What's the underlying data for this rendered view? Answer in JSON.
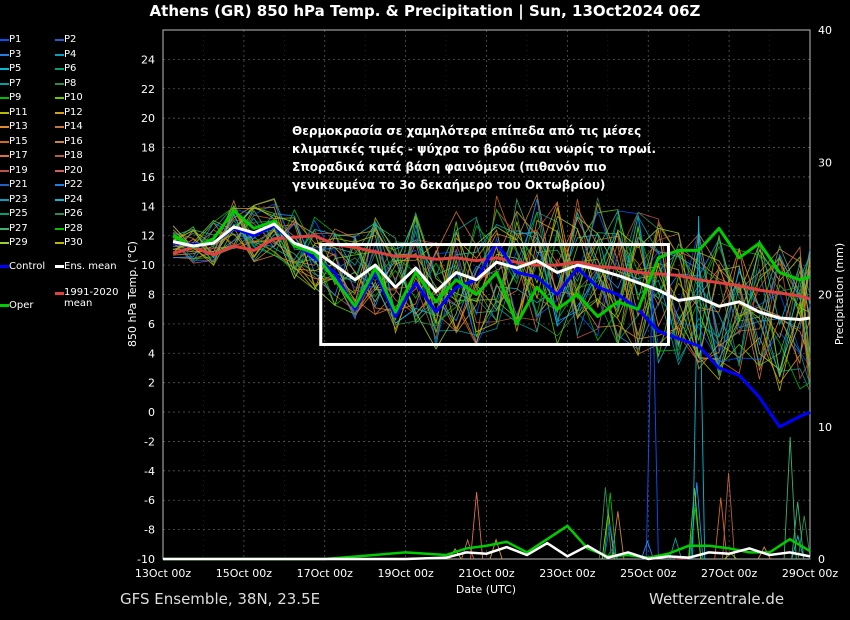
{
  "title": "Athens  (GR)  850 hPa Temp. & Precipitation | Sun, 13Oct2024 06Z",
  "footer_left": "GFS Ensemble, 38N, 23.5E",
  "footer_right": "Wetterzentrale.de",
  "annotation": [
    "Θερμοκρασία σε χαμηλότερα επίπεδα από τις μέσες",
    "κλιματικές τιμές - ψύχρα το βράδυ και νωρίς το πρωί.",
    "Σποραδικά κατά βάση φαινόμενα (πιθανόν πιο",
    "γενικευμένα το 3ο δεκαήμερο του Οκτωβρίου)"
  ],
  "colors": {
    "background": "#000000",
    "control": "#0000ff",
    "ens_mean": "#ffffff",
    "oper": "#00cc00",
    "climate_mean": "#e04040",
    "highlight_box": "#ffffff",
    "members": [
      "#0055ff",
      "#1e90ff",
      "#00bcd4",
      "#00a0a0",
      "#2e8b57",
      "#3cb371",
      "#00c000",
      "#66cc00",
      "#9acd32",
      "#b8b800",
      "#d4a017",
      "#e08a2a",
      "#c8743c",
      "#d2691e",
      "#cd853f",
      "#e07040",
      "#b56040",
      "#c05050"
    ]
  },
  "legend": {
    "members": [
      {
        "label": "P1",
        "color": "#0055ff"
      },
      {
        "label": "P2",
        "color": "#1e60c8"
      },
      {
        "label": "P3",
        "color": "#2080e0"
      },
      {
        "label": "P4",
        "color": "#00a0c0"
      },
      {
        "label": "P5",
        "color": "#00bcd4"
      },
      {
        "label": "P6",
        "color": "#00a070"
      },
      {
        "label": "P7",
        "color": "#00a0a0"
      },
      {
        "label": "P8",
        "color": "#2e8b57"
      },
      {
        "label": "P9",
        "color": "#00c000"
      },
      {
        "label": "P10",
        "color": "#66cc00"
      },
      {
        "label": "P11",
        "color": "#b8b800"
      },
      {
        "label": "P12",
        "color": "#d4a017"
      },
      {
        "label": "P13",
        "color": "#e08a2a"
      },
      {
        "label": "P14",
        "color": "#c8743c"
      },
      {
        "label": "P15",
        "color": "#d2691e"
      },
      {
        "label": "P16",
        "color": "#cd853f"
      },
      {
        "label": "P17",
        "color": "#e07040"
      },
      {
        "label": "P18",
        "color": "#b56040"
      },
      {
        "label": "P19",
        "color": "#c05050"
      },
      {
        "label": "P20",
        "color": "#d06060"
      },
      {
        "label": "P21",
        "color": "#1e60c8"
      },
      {
        "label": "P22",
        "color": "#2080e0"
      },
      {
        "label": "P23",
        "color": "#00a0c0"
      },
      {
        "label": "P24",
        "color": "#00bcd4"
      },
      {
        "label": "P25",
        "color": "#00a070"
      },
      {
        "label": "P26",
        "color": "#2e8b57"
      },
      {
        "label": "P27",
        "color": "#3cb371"
      },
      {
        "label": "P28",
        "color": "#00c000"
      },
      {
        "label": "P29",
        "color": "#9acd32"
      },
      {
        "label": "P30",
        "color": "#b8b800"
      }
    ],
    "control": {
      "label": "Control",
      "color": "#0000ff"
    },
    "ens_mean": {
      "label": "Ens. mean",
      "color": "#ffffff"
    },
    "oper": {
      "label": "Oper",
      "color": "#00cc00"
    },
    "climate_mean": {
      "label": "1991-2020 mean",
      "color": "#e04040"
    }
  },
  "chart_data": {
    "type": "line",
    "xlabel": "Date (UTC)",
    "ylabel": "850 hPa Temp. (°C)",
    "y2label": "Precipitation (mm)",
    "ylim": [
      -10,
      26
    ],
    "y2lim": [
      0,
      40
    ],
    "xlim_days": [
      0,
      16
    ],
    "x_ticks": [
      {
        "label": "13Oct 00z",
        "day": 0
      },
      {
        "label": "15Oct 00z",
        "day": 2
      },
      {
        "label": "17Oct 00z",
        "day": 4
      },
      {
        "label": "19Oct 00z",
        "day": 6
      },
      {
        "label": "21Oct 00z",
        "day": 8
      },
      {
        "label": "23Oct 00z",
        "day": 10
      },
      {
        "label": "25Oct 00z",
        "day": 12
      },
      {
        "label": "27Oct 00z",
        "day": 14
      },
      {
        "label": "29Oct 00z",
        "day": 16
      }
    ],
    "y_ticks": [
      24,
      22,
      20,
      18,
      16,
      14,
      12,
      10,
      8,
      6,
      4,
      2,
      0,
      -2,
      -4,
      -6,
      -8,
      -10
    ],
    "y2_ticks": [
      40,
      30,
      20,
      10,
      0
    ],
    "grid": true,
    "highlight_box": {
      "day_start": 4,
      "day_end": 12.5,
      "y_top": 11.4,
      "y_bottom": 4.6
    },
    "series": [
      {
        "name": "Ens. mean",
        "role": "mean",
        "x": [
          0.25,
          0.75,
          1.25,
          1.75,
          2.25,
          2.75,
          3.25,
          3.75,
          4.25,
          4.75,
          5.25,
          5.75,
          6.25,
          6.75,
          7.25,
          7.75,
          8.25,
          8.75,
          9.25,
          9.75,
          10.25,
          10.75,
          11.25,
          11.75,
          12.25,
          12.75,
          13.25,
          13.75,
          14.25,
          14.75,
          15.25,
          15.75,
          16
        ],
        "y": [
          11.6,
          11.3,
          11.5,
          12.6,
          12.2,
          12.8,
          11.5,
          11.0,
          10.0,
          9.0,
          10.0,
          8.5,
          9.8,
          8.2,
          9.5,
          9.0,
          10.2,
          9.8,
          10.3,
          9.5,
          10.0,
          9.7,
          9.3,
          8.8,
          8.3,
          7.6,
          7.8,
          7.2,
          7.5,
          6.8,
          6.4,
          6.3,
          6.4
        ]
      },
      {
        "name": "Control",
        "role": "control",
        "x": [
          0.25,
          0.75,
          1.25,
          1.75,
          2.25,
          2.75,
          3.25,
          3.75,
          4.25,
          4.75,
          5.25,
          5.75,
          6.25,
          6.75,
          7.25,
          7.75,
          8.25,
          8.75,
          9.25,
          9.75,
          10.25,
          10.75,
          11.25,
          11.75,
          12.25,
          12.75,
          13.25,
          13.75,
          14.25,
          14.75,
          15.25,
          15.75,
          16
        ],
        "y": [
          11.5,
          11.4,
          11.5,
          12.5,
          12.0,
          12.7,
          11.4,
          10.5,
          9.5,
          7.0,
          9.5,
          6.5,
          8.8,
          6.8,
          8.5,
          9.0,
          11.5,
          9.5,
          9.2,
          8.0,
          9.8,
          8.5,
          8.0,
          7.0,
          5.5,
          5.0,
          4.5,
          3.0,
          2.5,
          1.0,
          -1.0,
          -0.3,
          0.0
        ]
      },
      {
        "name": "Oper",
        "role": "oper",
        "x": [
          0.25,
          0.75,
          1.25,
          1.75,
          2.25,
          2.75,
          3.25,
          3.75,
          4.25,
          4.75,
          5.25,
          5.75,
          6.25,
          6.75,
          7.25,
          7.75,
          8.25,
          8.75,
          9.25,
          9.75,
          10.25,
          10.75,
          11.25,
          11.75,
          12.25,
          12.75,
          13.25,
          13.75,
          14.25,
          14.75,
          15.25,
          15.75,
          16
        ],
        "y": [
          12.0,
          11.2,
          11.8,
          13.7,
          12.5,
          13.0,
          11.3,
          10.8,
          9.0,
          7.2,
          9.8,
          6.8,
          9.5,
          7.5,
          9.0,
          8.0,
          9.5,
          6.0,
          8.5,
          7.0,
          8.0,
          6.5,
          7.5,
          7.0,
          10.5,
          11.0,
          11.0,
          12.5,
          10.5,
          11.5,
          9.5,
          9.0,
          9.2
        ]
      },
      {
        "name": "1991-2020 mean",
        "role": "climate",
        "x": [
          0.25,
          0.75,
          1.25,
          1.75,
          2.25,
          2.75,
          3.25,
          3.75,
          4.25,
          4.75,
          5.25,
          5.75,
          6.25,
          6.75,
          7.25,
          7.75,
          8.25,
          8.75,
          9.25,
          9.75,
          10.25,
          10.75,
          11.25,
          11.75,
          12.25,
          12.75,
          13.25,
          13.75,
          14.25,
          14.75,
          15.25,
          15.75,
          16
        ],
        "y": [
          10.8,
          11.2,
          10.7,
          11.3,
          11.0,
          11.8,
          11.9,
          12.0,
          11.4,
          11.2,
          10.9,
          10.6,
          10.6,
          10.4,
          10.5,
          10.3,
          10.5,
          10.2,
          10.0,
          10.0,
          10.2,
          9.9,
          9.8,
          9.5,
          9.4,
          9.3,
          9.0,
          8.8,
          8.6,
          8.3,
          8.1,
          7.9,
          7.7
        ]
      }
    ],
    "precipitation_mean_mm": {
      "x": [
        0,
        2,
        4,
        6,
        7,
        7.5,
        8,
        8.5,
        9,
        9.5,
        10,
        10.5,
        11,
        11.5,
        12,
        12.5,
        13,
        13.5,
        14,
        14.5,
        15,
        15.5,
        16
      ],
      "y": [
        0,
        0,
        0,
        0,
        0.1,
        0.5,
        0.4,
        0.9,
        0.3,
        1.2,
        0.2,
        1.0,
        0.1,
        0.5,
        0,
        0.2,
        0.1,
        0.5,
        0.4,
        0.8,
        0.3,
        0.5,
        0.2
      ]
    },
    "precipitation_oper_mm": {
      "x": [
        0,
        2,
        4,
        6,
        7,
        7.5,
        8,
        8.5,
        9,
        9.5,
        10,
        10.5,
        11,
        11.5,
        12,
        12.5,
        13,
        13.5,
        14,
        14.5,
        15,
        15.5,
        16
      ],
      "y": [
        0,
        0,
        0,
        0.5,
        0.3,
        0.8,
        1.0,
        1.3,
        0.5,
        1.5,
        2.5,
        0.8,
        0.2,
        0.3,
        0.1,
        0.4,
        1.0,
        1.0,
        0.8,
        0.5,
        0.5,
        1.5,
        0.6
      ]
    }
  }
}
